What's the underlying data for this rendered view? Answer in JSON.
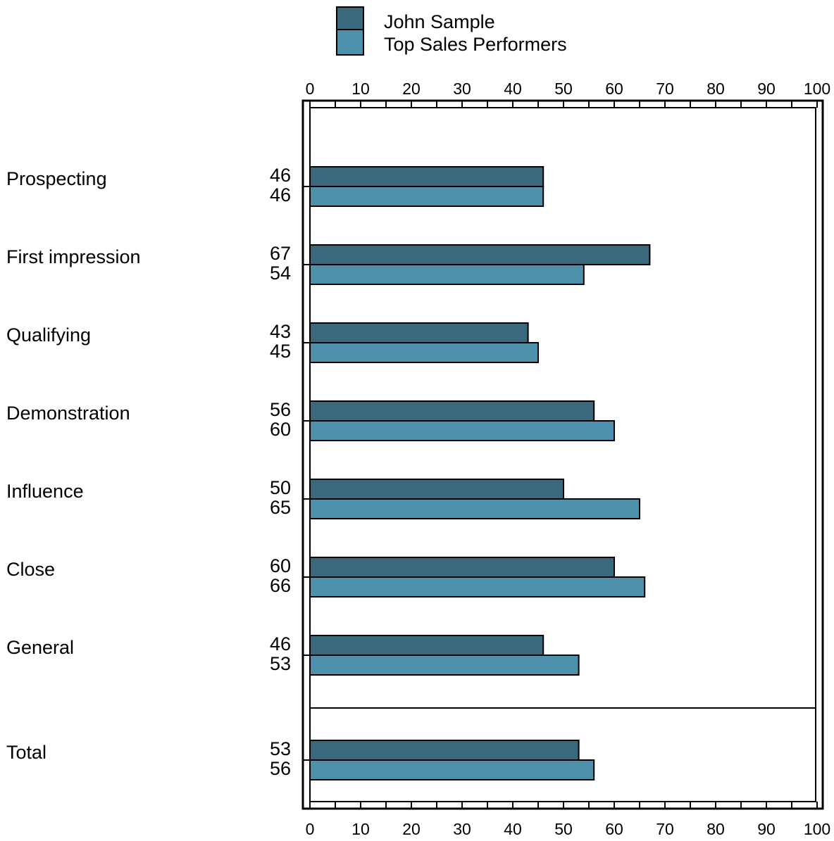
{
  "chart_data": {
    "type": "bar",
    "orientation": "horizontal",
    "categories": [
      "Prospecting",
      "First impression",
      "Qualifying",
      "Demonstration",
      "Influence",
      "Close",
      "General",
      "Total"
    ],
    "series": [
      {
        "name": "John Sample",
        "values": [
          46,
          67,
          43,
          56,
          50,
          60,
          46,
          53
        ]
      },
      {
        "name": "Top Sales Performers",
        "values": [
          46,
          54,
          45,
          60,
          65,
          66,
          53,
          56
        ]
      }
    ],
    "xlim": [
      0,
      100
    ],
    "xticks": [
      "0",
      "10",
      "20",
      "30",
      "40",
      "50",
      "60",
      "70",
      "80",
      "90",
      "100"
    ],
    "xticks_position": "top and bottom",
    "value_labels": "left of plot area",
    "separator_before": "Total",
    "grid": false,
    "legend_position": "top-center"
  },
  "colors": {
    "John Sample": "#3a687d",
    "Top Sales Performers": "#4f91ad",
    "outline": "#000000"
  }
}
